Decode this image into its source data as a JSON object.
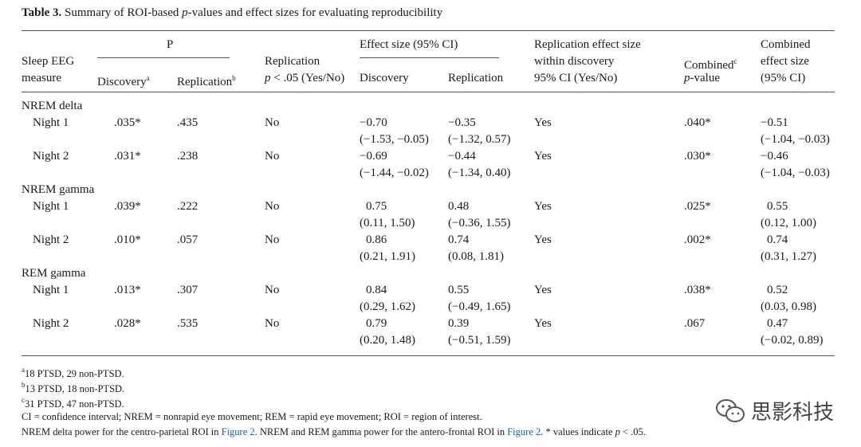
{
  "title": {
    "label": "Table 3.",
    "pre": "Summary of ROI-based ",
    "p": "p",
    "post": "-values and effect sizes for evaluating reproducibility"
  },
  "headers": {
    "sleep_eeg": "Sleep EEG",
    "measure": "measure",
    "P": "P",
    "discovery": "Discovery",
    "discovery_sup": "a",
    "replication": "Replication",
    "replication_sup": "b",
    "replication_p_1": "Replication",
    "replication_p_2a": "p",
    "replication_p_2b": " < .05 (Yes/No)",
    "effect_size": "Effect size (95% CI)",
    "es_discovery": "Discovery",
    "es_replication": "Replication",
    "rep_within_1": "Replication effect size",
    "rep_within_2": "within discovery",
    "rep_within_3": "95% CI (Yes/No)",
    "combined": "Combined",
    "combined_sup": "c",
    "combined_2a": "p",
    "combined_2b": "-value",
    "comb_es_1": "Combined",
    "comb_es_2": "effect size",
    "comb_es_3": "(95% CI)"
  },
  "groups": [
    "NREM delta",
    "NREM gamma",
    "REM gamma"
  ],
  "rows": [
    {
      "label": "Night 1",
      "p_disc": ".035*",
      "p_rep": ".435",
      "rep": "No",
      "es_disc": "−0.70",
      "es_disc_ci": "(−1.53, −0.05)",
      "es_rep": "−0.35",
      "es_rep_ci": "(−1.32, 0.57)",
      "within": "Yes",
      "comb_p": ".040*",
      "comb_es": "−0.51",
      "comb_es_ci": "(−1.04, −0.03)"
    },
    {
      "label": "Night 2",
      "p_disc": ".031*",
      "p_rep": ".238",
      "rep": "No",
      "es_disc": "−0.69",
      "es_disc_ci": "(−1.44, −0.02)",
      "es_rep": "−0.44",
      "es_rep_ci": "(−1.34, 0.40)",
      "within": "Yes",
      "comb_p": ".030*",
      "comb_es": "−0.46",
      "comb_es_ci": "(−1.04, −0.03)"
    },
    {
      "label": "Night 1",
      "p_disc": ".039*",
      "p_rep": ".222",
      "rep": "No",
      "es_disc": "0.75",
      "es_disc_ci": "(0.11, 1.50)",
      "es_rep": "0.48",
      "es_rep_ci": "(−0.36, 1.55)",
      "within": "Yes",
      "comb_p": ".025*",
      "comb_es": "0.55",
      "comb_es_ci": "(0.12, 1.00)"
    },
    {
      "label": "Night 2",
      "p_disc": ".010*",
      "p_rep": ".057",
      "rep": "No",
      "es_disc": "0.86",
      "es_disc_ci": "(0.21, 1.91)",
      "es_rep": "0.74",
      "es_rep_ci": "(0.08, 1.81)",
      "within": "Yes",
      "comb_p": ".002*",
      "comb_es": "0.74",
      "comb_es_ci": "(0.31, 1.27)"
    },
    {
      "label": "Night 1",
      "p_disc": ".013*",
      "p_rep": ".307",
      "rep": "No",
      "es_disc": "0.84",
      "es_disc_ci": "(0.29, 1.62)",
      "es_rep": "0.55",
      "es_rep_ci": "(−0.49, 1.65)",
      "within": "Yes",
      "comb_p": ".038*",
      "comb_es": "0.52",
      "comb_es_ci": "(0.03, 0.98)"
    },
    {
      "label": "Night 2",
      "p_disc": ".028*",
      "p_rep": ".535",
      "rep": "No",
      "es_disc": "0.79",
      "es_disc_ci": "(0.20, 1.48)",
      "es_rep": "0.39",
      "es_rep_ci": "(−0.51, 1.59)",
      "within": "Yes",
      "comb_p": ".067",
      "comb_es": "0.47",
      "comb_es_ci": "(−0.02, 0.89)"
    }
  ],
  "footnotes": {
    "a_sup": "a",
    "a": "18 PTSD, 29 non-PTSD.",
    "b_sup": "b",
    "b": "13 PTSD, 18 non-PTSD.",
    "c_sup": "c",
    "c": "31 PTSD, 47 non-PTSD.",
    "abbrev": "CI = confidence interval; NREM = nonrapid eye movement; REM = rapid eye movement; ROI = region of interest.",
    "note_1": "NREM delta power for the centro-parietal ROI in ",
    "fig2_a": "Figure 2",
    "note_2": ". NREM and REM gamma power for the antero-frontal ROI in ",
    "fig2_b": "Figure 2",
    "note_3": ". * values indicate ",
    "note_p": "p",
    "note_4": " < .05."
  },
  "watermark": {
    "text": "思影科技",
    "icon": "wechat-icon"
  }
}
